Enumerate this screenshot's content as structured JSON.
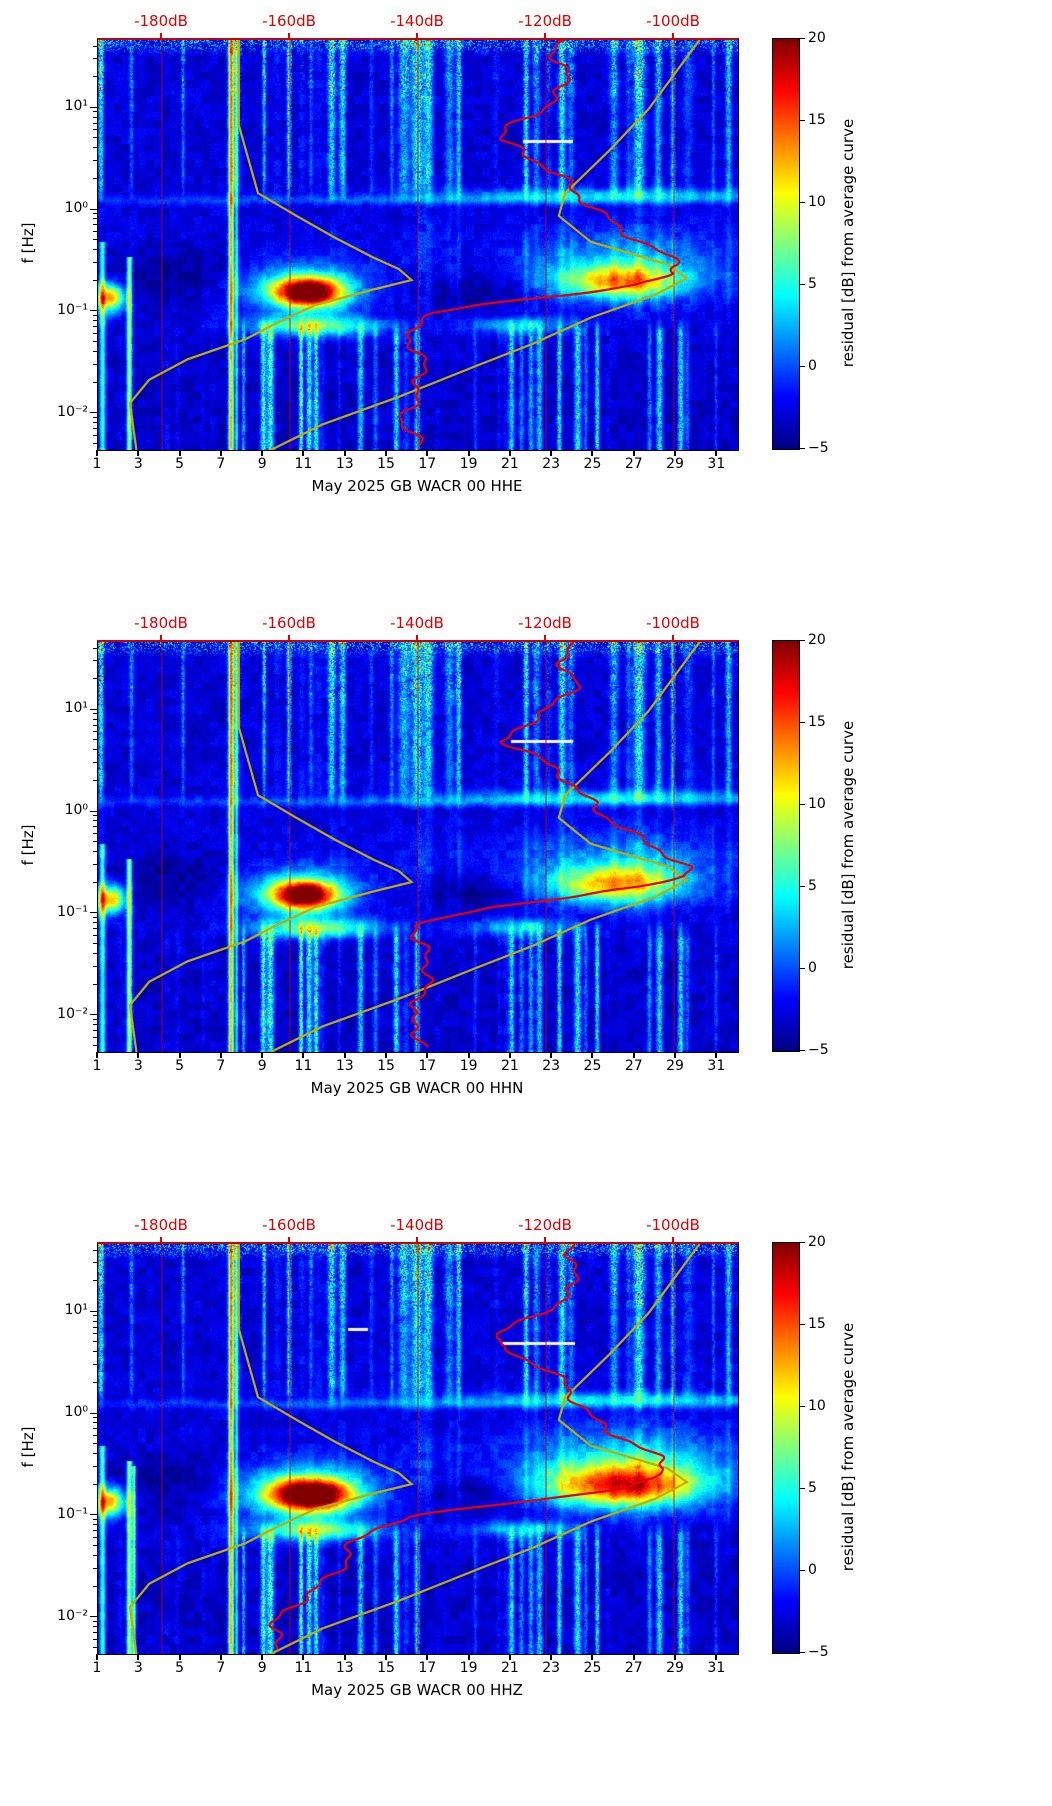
{
  "chart_data": {
    "type": "heatmap",
    "description": "Three stacked PPSD residual spectrograms (components HHE, HHN, HHZ) for station GB WACR 00, May 2025. Color = residual dB from average curve; overlaid red curve is the station PSD, olive curves are low/high noise models plotted against the top dB axis.",
    "x_axis": {
      "range_days": [
        1,
        32
      ],
      "ticks": [
        1,
        3,
        5,
        7,
        9,
        11,
        13,
        15,
        17,
        19,
        21,
        23,
        25,
        27,
        29,
        31
      ]
    },
    "y_axis": {
      "label": "f [Hz]",
      "scale": "log",
      "range_hz": [
        0.0045,
        48
      ],
      "ticks": [
        {
          "f": 10,
          "label": "10¹"
        },
        {
          "f": 1,
          "label": "10⁰"
        },
        {
          "f": 0.1,
          "label": "10⁻¹"
        },
        {
          "f": 0.01,
          "label": "10⁻²"
        }
      ]
    },
    "top_axis": {
      "unit": "dB",
      "color": "#dd0000",
      "range_db": [
        -190,
        -90
      ],
      "ticks": [
        {
          "db": -180,
          "label": "-180dB"
        },
        {
          "db": -160,
          "label": "-160dB"
        },
        {
          "db": -140,
          "label": "-140dB"
        },
        {
          "db": -120,
          "label": "-120dB"
        },
        {
          "db": -100,
          "label": "-100dB"
        }
      ]
    },
    "colorbar": {
      "label": "residual [dB] from average curve",
      "min": -5,
      "max": 20,
      "colormap": "jet",
      "ticks": [
        {
          "v": 20,
          "label": "20"
        },
        {
          "v": 15,
          "label": "15"
        },
        {
          "v": 10,
          "label": "10"
        },
        {
          "v": 5,
          "label": "5"
        },
        {
          "v": 0,
          "label": "0"
        },
        {
          "v": -5,
          "label": "−5"
        }
      ]
    },
    "curves": {
      "colors": {
        "noise_model": "#bfad00",
        "psd": "#e60000"
      },
      "nlnm": [
        [
          48,
          -168
        ],
        [
          7,
          -168
        ],
        [
          1.5,
          -165
        ],
        [
          0.9,
          -159
        ],
        [
          0.55,
          -153
        ],
        [
          0.35,
          -147
        ],
        [
          0.27,
          -143
        ],
        [
          0.21,
          -141
        ],
        [
          0.17,
          -147
        ],
        [
          0.12,
          -156
        ],
        [
          0.08,
          -162
        ],
        [
          0.055,
          -167
        ],
        [
          0.035,
          -176
        ],
        [
          0.022,
          -182
        ],
        [
          0.013,
          -185
        ],
        [
          0.0045,
          -184
        ]
      ],
      "nhnm": [
        [
          48,
          -96
        ],
        [
          10,
          -104
        ],
        [
          4,
          -110
        ],
        [
          1.5,
          -117
        ],
        [
          0.9,
          -118
        ],
        [
          0.5,
          -113
        ],
        [
          0.3,
          -101
        ],
        [
          0.22,
          -98
        ],
        [
          0.15,
          -103
        ],
        [
          0.09,
          -113
        ],
        [
          0.05,
          -122
        ],
        [
          0.03,
          -131
        ],
        [
          0.015,
          -143
        ],
        [
          0.008,
          -155
        ],
        [
          0.0045,
          -163
        ]
      ]
    },
    "texture": {
      "stripe_seed": 987654,
      "shared_blobs": [
        [
          26,
          6,
          0.16,
          0.05,
          5.5
        ],
        [
          16,
          14,
          0.11,
          0.035,
          3
        ],
        [
          4.8,
          3.2,
          -0.62,
          0.2,
          -2.2
        ],
        [
          19,
          2.2,
          -0.78,
          0.13,
          -2
        ],
        [
          1.6,
          0.5,
          -0.85,
          0.1,
          16
        ],
        [
          11.5,
          2.2,
          -1.13,
          0.07,
          10
        ],
        [
          21.5,
          1.8,
          -1.12,
          0.06,
          6
        ]
      ],
      "shared_spikes": [
        [
          7.45,
          0.09,
          16,
          9
        ],
        [
          7.72,
          0.05,
          8,
          9
        ],
        [
          2.52,
          0.09,
          12,
          -0.45
        ],
        [
          1.22,
          0.1,
          9,
          -0.3
        ]
      ]
    },
    "panels": [
      {
        "channel": "HHE",
        "xlabel": "May 2025 GB WACR 00 HHE",
        "seed": 11,
        "psd_curve": [
          [
            48,
            -116
          ],
          [
            30,
            -118
          ],
          [
            20,
            -117
          ],
          [
            13,
            -120
          ],
          [
            9,
            -122
          ],
          [
            6.5,
            -125
          ],
          [
            5,
            -126
          ],
          [
            4,
            -123
          ],
          [
            3,
            -121
          ],
          [
            2.2,
            -119
          ],
          [
            1.6,
            -117
          ],
          [
            1.1,
            -113
          ],
          [
            0.8,
            -109
          ],
          [
            0.55,
            -105
          ],
          [
            0.4,
            -102
          ],
          [
            0.3,
            -100
          ],
          [
            0.24,
            -101
          ],
          [
            0.19,
            -107
          ],
          [
            0.15,
            -118
          ],
          [
            0.12,
            -130
          ],
          [
            0.1,
            -136
          ],
          [
            0.08,
            -139
          ],
          [
            0.06,
            -141
          ],
          [
            0.04,
            -140
          ],
          [
            0.025,
            -141
          ],
          [
            0.015,
            -140
          ],
          [
            0.009,
            -141
          ],
          [
            0.005,
            -140
          ]
        ],
        "blobs": [
          [
            11.2,
            1.1,
            -0.8,
            0.1,
            22
          ],
          [
            10.8,
            2.2,
            -0.76,
            0.17,
            8
          ],
          [
            26.3,
            2.0,
            -0.7,
            0.11,
            13
          ],
          [
            26.5,
            3.2,
            -0.52,
            0.22,
            5
          ]
        ],
        "spikes": [],
        "gaps": [
          [
            22.8,
            1.2,
            0.68,
            0.015
          ]
        ]
      },
      {
        "channel": "HHN",
        "xlabel": "May 2025 GB WACR 00 HHN",
        "seed": 22,
        "psd_curve": [
          [
            48,
            -115
          ],
          [
            30,
            -117
          ],
          [
            20,
            -116
          ],
          [
            13,
            -119
          ],
          [
            9,
            -121
          ],
          [
            6.5,
            -124
          ],
          [
            5,
            -125
          ],
          [
            4,
            -122
          ],
          [
            3,
            -120
          ],
          [
            2.2,
            -118
          ],
          [
            1.6,
            -116
          ],
          [
            1.1,
            -112
          ],
          [
            0.8,
            -108
          ],
          [
            0.55,
            -104
          ],
          [
            0.4,
            -101
          ],
          [
            0.3,
            -99
          ],
          [
            0.24,
            -100
          ],
          [
            0.19,
            -106
          ],
          [
            0.15,
            -116
          ],
          [
            0.12,
            -128
          ],
          [
            0.1,
            -134
          ],
          [
            0.08,
            -138
          ],
          [
            0.06,
            -140
          ],
          [
            0.04,
            -139
          ],
          [
            0.025,
            -140
          ],
          [
            0.015,
            -139
          ],
          [
            0.009,
            -140
          ],
          [
            0.005,
            -139
          ]
        ],
        "blobs": [
          [
            11.0,
            1.05,
            -0.81,
            0.1,
            21
          ],
          [
            10.6,
            2.1,
            -0.77,
            0.16,
            8
          ],
          [
            26.0,
            2.1,
            -0.71,
            0.12,
            12
          ],
          [
            26.3,
            3.1,
            -0.53,
            0.22,
            5
          ]
        ],
        "spikes": [],
        "gaps": [
          [
            22.5,
            1.5,
            0.7,
            0.015
          ]
        ]
      },
      {
        "channel": "HHZ",
        "xlabel": "May 2025 GB WACR 00 HHZ",
        "seed": 33,
        "psd_curve": [
          [
            48,
            -114
          ],
          [
            30,
            -116
          ],
          [
            20,
            -116
          ],
          [
            13,
            -119
          ],
          [
            9,
            -122
          ],
          [
            6.5,
            -126
          ],
          [
            5,
            -127
          ],
          [
            4,
            -124
          ],
          [
            3,
            -121
          ],
          [
            2.2,
            -119
          ],
          [
            1.6,
            -117
          ],
          [
            1.1,
            -114
          ],
          [
            0.8,
            -110
          ],
          [
            0.55,
            -106
          ],
          [
            0.4,
            -103
          ],
          [
            0.3,
            -102
          ],
          [
            0.24,
            -104
          ],
          [
            0.19,
            -110
          ],
          [
            0.15,
            -120
          ],
          [
            0.12,
            -132
          ],
          [
            0.1,
            -140
          ],
          [
            0.08,
            -145
          ],
          [
            0.06,
            -149
          ],
          [
            0.04,
            -152
          ],
          [
            0.025,
            -155
          ],
          [
            0.015,
            -158
          ],
          [
            0.009,
            -161
          ],
          [
            0.005,
            -163
          ]
        ],
        "blobs": [
          [
            11.3,
            1.35,
            -0.79,
            0.11,
            23
          ],
          [
            10.9,
            2.5,
            -0.74,
            0.18,
            9
          ],
          [
            26.4,
            2.6,
            -0.7,
            0.14,
            15
          ],
          [
            26.6,
            3.4,
            -0.5,
            0.25,
            7
          ]
        ],
        "spikes": [
          [
            2.75,
            0.06,
            10,
            -0.5
          ]
        ],
        "gaps": [
          [
            22.3,
            1.8,
            0.7,
            0.015
          ],
          [
            13.6,
            0.5,
            0.84,
            0.012
          ]
        ]
      }
    ]
  }
}
